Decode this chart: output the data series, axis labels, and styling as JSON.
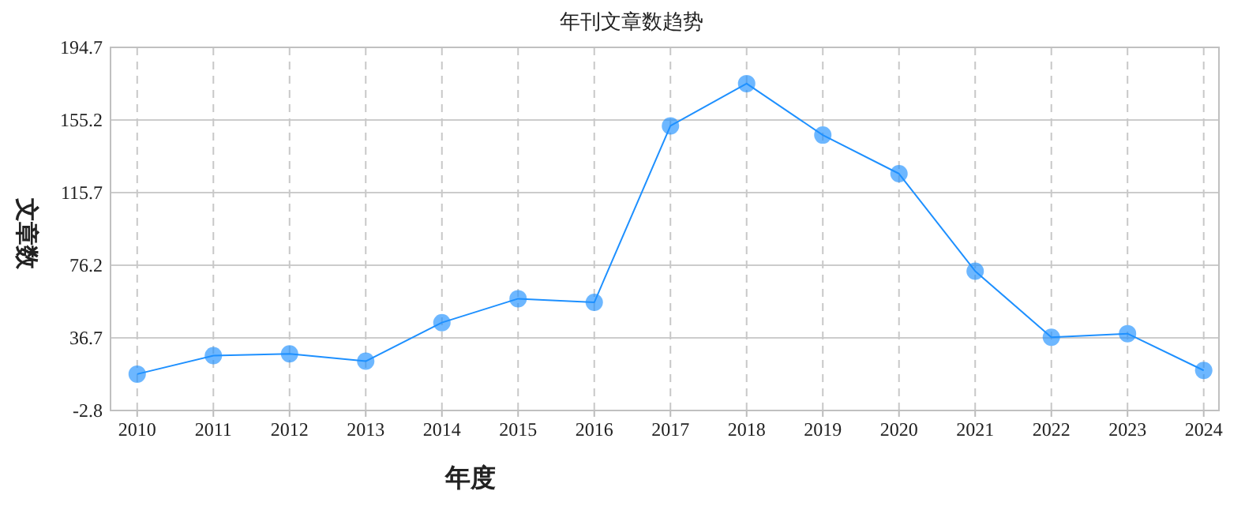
{
  "chart_data": {
    "type": "line",
    "title": "年刊文章数趋势",
    "xlabel": "年度",
    "ylabel": "文章数",
    "categories": [
      "2010",
      "2011",
      "2012",
      "2013",
      "2014",
      "2015",
      "2016",
      "2017",
      "2018",
      "2019",
      "2020",
      "2021",
      "2022",
      "2023",
      "2024"
    ],
    "series": [
      {
        "color": "#1e90ff",
        "values": [
          17,
          27,
          28,
          24,
          45,
          58,
          56,
          152,
          175,
          147,
          126,
          73,
          37,
          39,
          19
        ]
      }
    ],
    "ylim": [
      -2.8,
      194.7
    ],
    "yticks": [
      -2.8,
      36.7,
      76.2,
      115.7,
      155.2,
      194.7
    ],
    "grid": true,
    "marker": "circle",
    "line_style": "solid"
  }
}
